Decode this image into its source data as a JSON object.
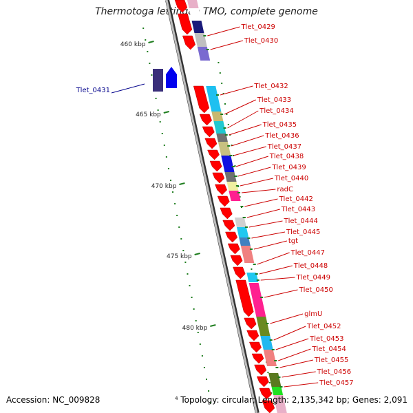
{
  "title": "Thermotoga lettingae TMO, complete genome",
  "footer": {
    "accession": "Accession: NC_009828",
    "topology_marker": "4",
    "topology": "Topology: circular; Length: 2,135,342 bp; Genes: 2,091"
  },
  "colors": {
    "forward_label": "#cc0000",
    "reverse_label": "#00008b",
    "backbone": "#7a7a7a",
    "tick": "#1e7d1e",
    "forward_arrow": "#ff0000",
    "reverse_arrow": "#0000ee"
  },
  "scale_labels": [
    {
      "kbp": 460,
      "text": "460 kbp"
    },
    {
      "kbp": 465,
      "text": "465 kbp"
    },
    {
      "kbp": 470,
      "text": "470 kbp"
    },
    {
      "kbp": 475,
      "text": "475 kbp"
    },
    {
      "kbp": 480,
      "text": "480 kbp"
    }
  ],
  "genes": [
    {
      "label": "Tlet_0429",
      "strand": "+"
    },
    {
      "label": "Tlet_0430",
      "strand": "+"
    },
    {
      "label": "Tlet_0431",
      "strand": "-"
    },
    {
      "label": "Tlet_0432",
      "strand": "+"
    },
    {
      "label": "Tlet_0433",
      "strand": "+"
    },
    {
      "label": "Tlet_0434",
      "strand": "+"
    },
    {
      "label": "Tlet_0435",
      "strand": "+"
    },
    {
      "label": "Tlet_0436",
      "strand": "+"
    },
    {
      "label": "Tlet_0437",
      "strand": "+"
    },
    {
      "label": "Tlet_0438",
      "strand": "+"
    },
    {
      "label": "Tlet_0439",
      "strand": "+"
    },
    {
      "label": "Tlet_0440",
      "strand": "+"
    },
    {
      "label": "radC",
      "strand": "+"
    },
    {
      "label": "Tlet_0442",
      "strand": "+"
    },
    {
      "label": "Tlet_0443",
      "strand": "+"
    },
    {
      "label": "Tlet_0444",
      "strand": "+"
    },
    {
      "label": "Tlet_0445",
      "strand": "+"
    },
    {
      "label": "tgt",
      "strand": "+"
    },
    {
      "label": "Tlet_0447",
      "strand": "+"
    },
    {
      "label": "Tlet_0448",
      "strand": "+"
    },
    {
      "label": "Tlet_0449",
      "strand": "+"
    },
    {
      "label": "Tlet_0450",
      "strand": "+"
    },
    {
      "label": "glmU",
      "strand": "+"
    },
    {
      "label": "Tlet_0452",
      "strand": "+"
    },
    {
      "label": "Tlet_0453",
      "strand": "+"
    },
    {
      "label": "Tlet_0454",
      "strand": "+"
    },
    {
      "label": "Tlet_0455",
      "strand": "+"
    },
    {
      "label": "Tlet_0456",
      "strand": "+"
    },
    {
      "label": "Tlet_0457",
      "strand": "+"
    }
  ]
}
